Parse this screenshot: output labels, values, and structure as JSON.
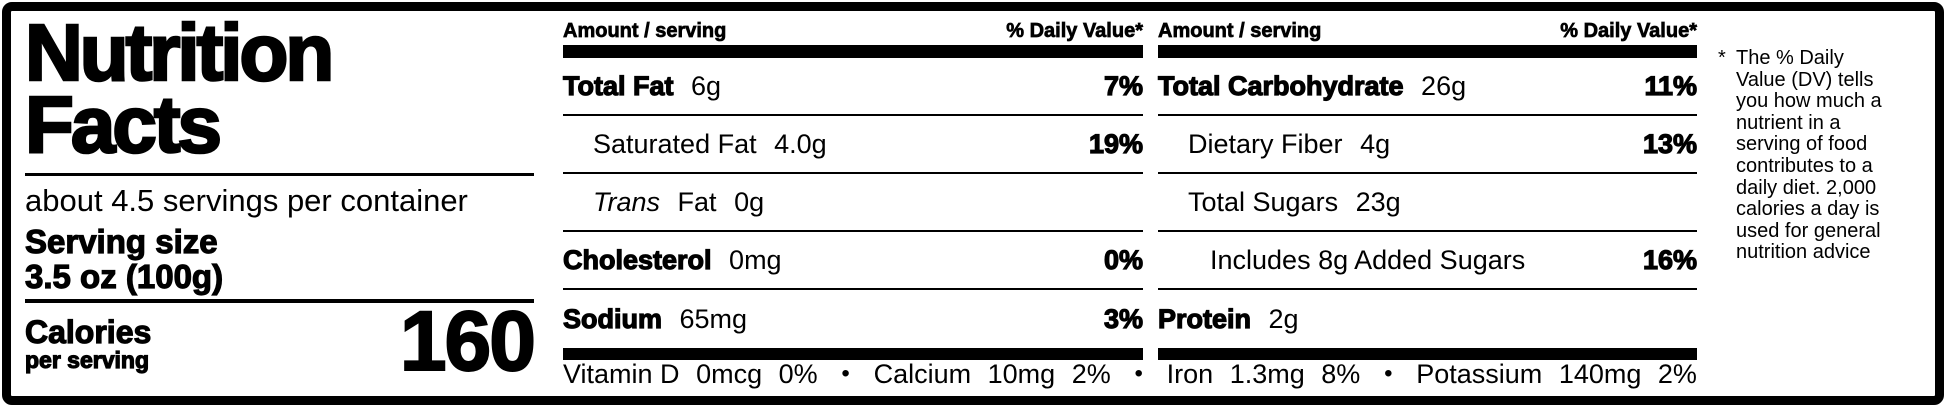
{
  "label": {
    "title_line1": "Nutrition",
    "title_line2": "Facts",
    "servings_per_container": "about 4.5 servings per container",
    "serving_size_label": "Serving size",
    "serving_size_value": "3.5 oz (100g)",
    "calories_label": "Calories",
    "calories_sublabel": "per serving",
    "calories_value": "160"
  },
  "columns": [
    {
      "header_left": "Amount / serving",
      "header_right": "% Daily Value*",
      "rows": [
        {
          "parts": [
            {
              "text": "Total Fat",
              "style": "bold"
            },
            {
              "text": "6g",
              "style": "regular"
            }
          ],
          "dv": "7%",
          "indent": 0
        },
        {
          "parts": [
            {
              "text": "Saturated Fat",
              "style": "regular"
            },
            {
              "text": "4.0g",
              "style": "regular"
            }
          ],
          "dv": "19%",
          "indent": 1
        },
        {
          "parts": [
            {
              "text": "Trans",
              "style": "italic"
            },
            {
              "text": "Fat",
              "style": "regular"
            },
            {
              "text": "0g",
              "style": "regular"
            }
          ],
          "dv": "",
          "indent": 1
        },
        {
          "parts": [
            {
              "text": "Cholesterol",
              "style": "bold"
            },
            {
              "text": "0mg",
              "style": "regular"
            }
          ],
          "dv": "0%",
          "indent": 0
        },
        {
          "parts": [
            {
              "text": "Sodium",
              "style": "bold"
            },
            {
              "text": "65mg",
              "style": "regular"
            }
          ],
          "dv": "3%",
          "indent": 0
        }
      ]
    },
    {
      "header_left": "Amount / serving",
      "header_right": "% Daily Value*",
      "rows": [
        {
          "parts": [
            {
              "text": "Total Carbohydrate",
              "style": "bold"
            },
            {
              "text": "26g",
              "style": "regular"
            }
          ],
          "dv": "11%",
          "indent": 0
        },
        {
          "parts": [
            {
              "text": "Dietary Fiber",
              "style": "regular"
            },
            {
              "text": "4g",
              "style": "regular"
            }
          ],
          "dv": "13%",
          "indent": 1
        },
        {
          "parts": [
            {
              "text": "Total Sugars",
              "style": "regular"
            },
            {
              "text": "23g",
              "style": "regular"
            }
          ],
          "dv": "",
          "indent": 1
        },
        {
          "parts": [
            {
              "text": "Includes 8g Added Sugars",
              "style": "regular"
            }
          ],
          "dv": "16%",
          "indent": 2
        },
        {
          "parts": [
            {
              "text": "Protein",
              "style": "bold"
            },
            {
              "text": "2g",
              "style": "regular"
            }
          ],
          "dv": "",
          "indent": 0
        }
      ]
    }
  ],
  "micronutrients": [
    {
      "name": "Vitamin D",
      "amount": "0mcg",
      "dv": "0%"
    },
    {
      "name": "Calcium",
      "amount": "10mg",
      "dv": "2%"
    },
    {
      "name": "Iron",
      "amount": "1.3mg",
      "dv": "8%"
    },
    {
      "name": "Potassium",
      "amount": "140mg",
      "dv": "2%"
    }
  ],
  "separator": "•",
  "footnote": {
    "marker": "*",
    "lines": [
      "The % Daily",
      "Value (DV) tells",
      "you how much a",
      "nutrient in a",
      "serving of food",
      "contributes to a",
      "daily diet. 2,000",
      "calories a day is",
      "used for general",
      "nutrition advice"
    ]
  },
  "colors": {
    "text": "#000000",
    "background": "#ffffff"
  }
}
